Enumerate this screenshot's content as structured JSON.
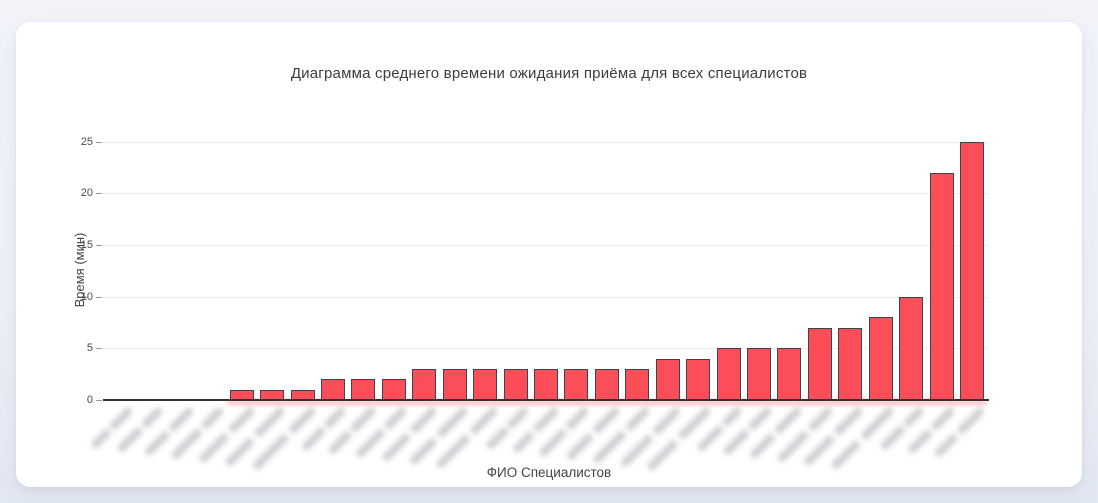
{
  "chart_data": {
    "type": "bar",
    "title": "Диаграмма среднего времени ожидания приёма для всех специалистов",
    "xlabel": "ФИО Специалистов",
    "ylabel": "Время (мин)",
    "ylim": [
      0,
      25
    ],
    "yticks": [
      0,
      5,
      10,
      15,
      20,
      25
    ],
    "grid": true,
    "legend": "none",
    "n_bars": 29,
    "x_tick_labels": "blurred anonymized specialist names, rotated ~45 degrees, illegible",
    "values": [
      0,
      0,
      0,
      0,
      1,
      1,
      1,
      2,
      2,
      2,
      3,
      3,
      3,
      3,
      3,
      3,
      3,
      3,
      4,
      4,
      5,
      5,
      5,
      7,
      7,
      8,
      10,
      22,
      25
    ],
    "colors": {
      "bar_fill": "#fc4e59",
      "bar_border": "#3f434b",
      "gridline": "#ededf0",
      "axis_line": "#323232",
      "title_text": "#3c3c3c",
      "axis_text": "#444444",
      "blurred_label": "#a2a7af",
      "page_background": "#edf0f7",
      "card_background": "#ffffff"
    }
  }
}
